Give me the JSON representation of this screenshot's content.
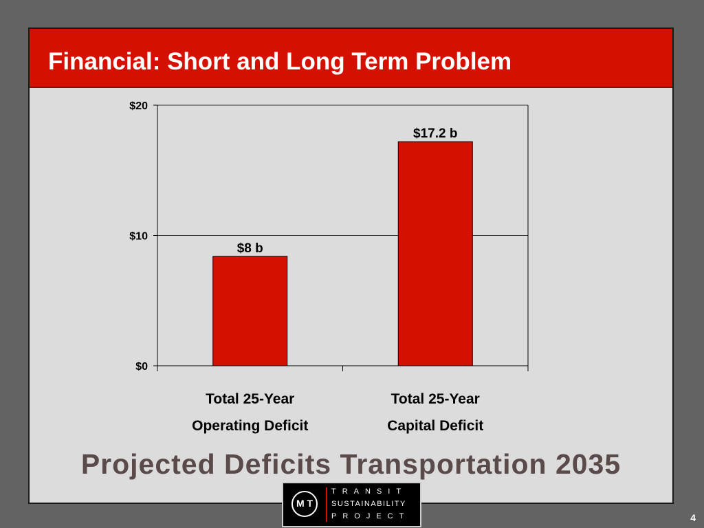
{
  "slide": {
    "title": "Financial: Short and Long Term Problem",
    "subtitle": "Projected Deficits Transportation 2035",
    "page_number": "4"
  },
  "logo": {
    "mark": "M T",
    "line1": "TRANSIT",
    "line2": "SUSTAINABILITY",
    "line3": "PROJECT"
  },
  "colors": {
    "title_bar": "#d41100",
    "bar_fill": "#d41100",
    "panel": "#dcdcdc",
    "background": "#636363"
  },
  "chart_data": {
    "type": "bar",
    "categories": [
      [
        "Total 25-Year",
        "Operating Deficit"
      ],
      [
        "Total 25-Year",
        "Capital Deficit"
      ]
    ],
    "values": [
      8.4,
      17.2
    ],
    "data_labels": [
      "$8 b",
      "$17.2 b"
    ],
    "yticks": [
      0,
      10,
      20
    ],
    "ytick_labels": [
      "$0",
      "$10",
      "$20"
    ],
    "ylim": [
      0,
      20
    ],
    "grid": true,
    "legend": false,
    "title": "",
    "xlabel": "",
    "ylabel": ""
  }
}
